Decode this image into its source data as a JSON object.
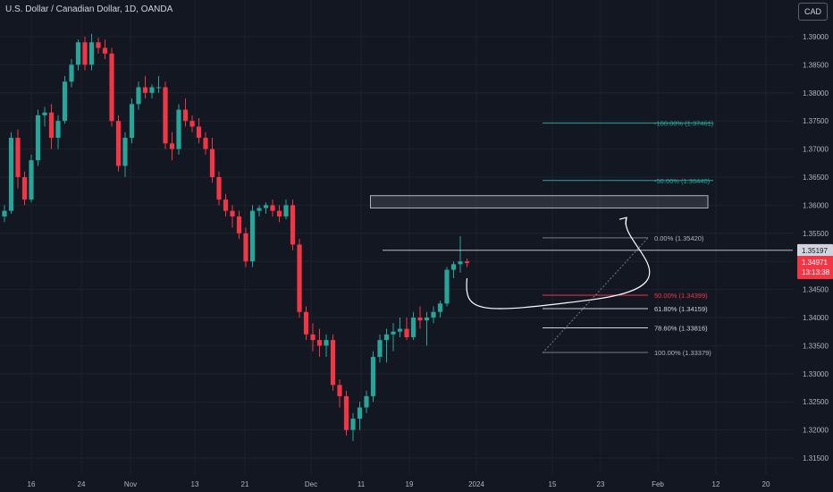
{
  "header": {
    "title": "U.S. Dollar / Canadian Dollar, 1D, OANDA",
    "currency_button": "CAD"
  },
  "colors": {
    "background": "#131722",
    "up": "#26a69a",
    "down": "#f23645",
    "grid": "#1e222d",
    "axis_text": "#b2b5be"
  },
  "chart_data": {
    "type": "candlestick",
    "title": "U.S. Dollar / Canadian Dollar, 1D, OANDA",
    "ylim": [
      1.3125,
      1.394
    ],
    "y_ticks": [
      "1.39000",
      "1.38500",
      "1.38000",
      "1.37500",
      "1.37000",
      "1.36500",
      "1.36000",
      "1.35500",
      "1.35000",
      "1.34500",
      "1.34000",
      "1.33500",
      "1.33000",
      "1.32500",
      "1.32000",
      "1.31500"
    ],
    "x_ticks": [
      "16",
      "24",
      "Nov",
      "13",
      "21",
      "Dec",
      "11",
      "19",
      "2024",
      "15",
      "23",
      "Feb",
      "12",
      "20"
    ],
    "price_labels": {
      "current_price": "1.34971",
      "countdown": "13:13:38",
      "line_price": "1.35197"
    },
    "resistance_zone": {
      "top": 1.3617,
      "bottom": 1.3595
    },
    "fib_top_group": [
      {
        "label": "-100.00% (1.37461)",
        "value": 1.37461
      },
      {
        "label": "-50.00% (1.36440)",
        "value": 1.3644
      }
    ],
    "fib_levels": [
      {
        "label": "0.00% (1.35420)",
        "value": 1.3542
      },
      {
        "label": "50.00% (1.34399)",
        "value": 1.34399
      },
      {
        "label": "61.80% (1.34159)",
        "value": 1.34159
      },
      {
        "label": "78.60% (1.33816)",
        "value": 1.33816
      },
      {
        "label": "100.00% (1.33379)",
        "value": 1.33379
      }
    ],
    "candles": [
      [
        1.358,
        1.36,
        1.357,
        1.359
      ],
      [
        1.359,
        1.373,
        1.3585,
        1.372
      ],
      [
        1.372,
        1.3735,
        1.363,
        1.365
      ],
      [
        1.365,
        1.366,
        1.36,
        1.361
      ],
      [
        1.361,
        1.369,
        1.3605,
        1.368
      ],
      [
        1.368,
        1.377,
        1.367,
        1.376
      ],
      [
        1.376,
        1.3775,
        1.374,
        1.3765
      ],
      [
        1.3765,
        1.378,
        1.37,
        1.372
      ],
      [
        1.372,
        1.376,
        1.37,
        1.375
      ],
      [
        1.375,
        1.383,
        1.3745,
        1.382
      ],
      [
        1.382,
        1.386,
        1.381,
        1.385
      ],
      [
        1.385,
        1.3895,
        1.384,
        1.389
      ],
      [
        1.389,
        1.39,
        1.384,
        1.385
      ],
      [
        1.385,
        1.3905,
        1.384,
        1.389
      ],
      [
        1.389,
        1.3898,
        1.387,
        1.388
      ],
      [
        1.388,
        1.3895,
        1.386,
        1.387
      ],
      [
        1.387,
        1.388,
        1.374,
        1.375
      ],
      [
        1.375,
        1.376,
        1.366,
        1.367
      ],
      [
        1.367,
        1.373,
        1.365,
        1.372
      ],
      [
        1.372,
        1.379,
        1.371,
        1.378
      ],
      [
        1.378,
        1.382,
        1.377,
        1.381
      ],
      [
        1.381,
        1.383,
        1.379,
        1.38
      ],
      [
        1.38,
        1.3815,
        1.379,
        1.381
      ],
      [
        1.381,
        1.383,
        1.38,
        1.381
      ],
      [
        1.381,
        1.382,
        1.37,
        1.371
      ],
      [
        1.371,
        1.373,
        1.368,
        1.37
      ],
      [
        1.37,
        1.378,
        1.369,
        1.377
      ],
      [
        1.377,
        1.379,
        1.374,
        1.375
      ],
      [
        1.375,
        1.376,
        1.373,
        1.374
      ],
      [
        1.374,
        1.3755,
        1.371,
        1.372
      ],
      [
        1.372,
        1.373,
        1.369,
        1.37
      ],
      [
        1.37,
        1.372,
        1.364,
        1.365
      ],
      [
        1.365,
        1.366,
        1.36,
        1.361
      ],
      [
        1.361,
        1.362,
        1.358,
        1.359
      ],
      [
        1.359,
        1.36,
        1.356,
        1.358
      ],
      [
        1.358,
        1.359,
        1.354,
        1.355
      ],
      [
        1.355,
        1.356,
        1.349,
        1.35
      ],
      [
        1.35,
        1.36,
        1.349,
        1.359
      ],
      [
        1.359,
        1.36,
        1.358,
        1.3595
      ],
      [
        1.3595,
        1.3605,
        1.3585,
        1.36
      ],
      [
        1.36,
        1.361,
        1.358,
        1.359
      ],
      [
        1.359,
        1.36,
        1.357,
        1.358
      ],
      [
        1.358,
        1.361,
        1.3575,
        1.36
      ],
      [
        1.36,
        1.361,
        1.352,
        1.353
      ],
      [
        1.353,
        1.354,
        1.34,
        1.341
      ],
      [
        1.341,
        1.342,
        1.336,
        1.337
      ],
      [
        1.337,
        1.339,
        1.334,
        1.336
      ],
      [
        1.336,
        1.338,
        1.333,
        1.335
      ],
      [
        1.335,
        1.337,
        1.333,
        1.336
      ],
      [
        1.336,
        1.337,
        1.327,
        1.328
      ],
      [
        1.328,
        1.329,
        1.324,
        1.326
      ],
      [
        1.326,
        1.327,
        1.319,
        1.32
      ],
      [
        1.32,
        1.323,
        1.318,
        1.322
      ],
      [
        1.322,
        1.325,
        1.32,
        1.324
      ],
      [
        1.324,
        1.327,
        1.323,
        1.326
      ],
      [
        1.326,
        1.334,
        1.325,
        1.333
      ],
      [
        1.333,
        1.337,
        1.332,
        1.336
      ],
      [
        1.336,
        1.338,
        1.332,
        1.337
      ],
      [
        1.337,
        1.339,
        1.334,
        1.3375
      ],
      [
        1.3375,
        1.34,
        1.3365,
        1.338
      ],
      [
        1.338,
        1.34,
        1.336,
        1.3365
      ],
      [
        1.3365,
        1.341,
        1.336,
        1.34
      ],
      [
        1.34,
        1.342,
        1.338,
        1.3395
      ],
      [
        1.3395,
        1.341,
        1.335,
        1.34
      ],
      [
        1.34,
        1.342,
        1.339,
        1.341
      ],
      [
        1.341,
        1.343,
        1.34,
        1.3425
      ],
      [
        1.3425,
        1.349,
        1.342,
        1.3485
      ],
      [
        1.3485,
        1.35,
        1.347,
        1.3495
      ],
      [
        1.3495,
        1.3545,
        1.348,
        1.35
      ],
      [
        1.35,
        1.3505,
        1.349,
        1.3497
      ]
    ]
  }
}
